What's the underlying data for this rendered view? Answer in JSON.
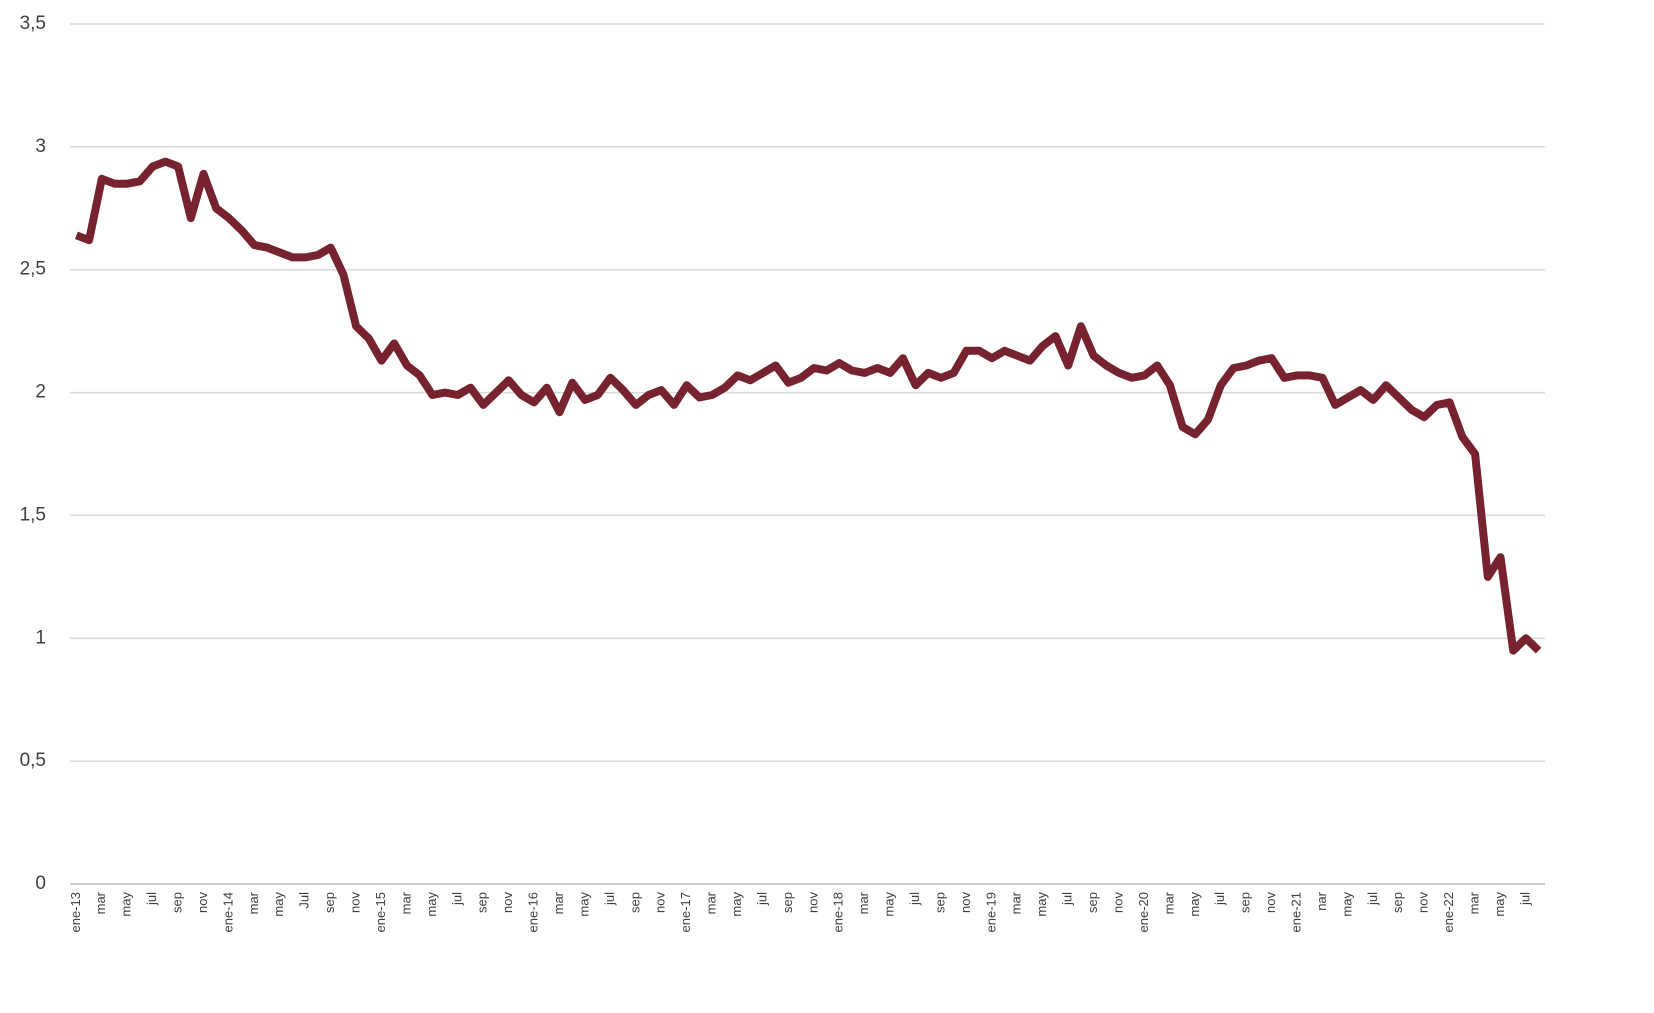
{
  "chart_data": {
    "type": "line",
    "categories": [
      "ene-13",
      null,
      "mar",
      null,
      "may",
      null,
      "jul",
      null,
      "sep",
      null,
      "nov",
      null,
      "ene-14",
      null,
      "mar",
      null,
      "may",
      null,
      "Jul",
      null,
      "sep",
      null,
      "nov",
      null,
      "ene-15",
      null,
      "mar",
      null,
      "may",
      null,
      "jul",
      null,
      "sep",
      null,
      "nov",
      null,
      "ene-16",
      null,
      "mar",
      null,
      "may",
      null,
      "jul",
      null,
      "sep",
      null,
      "nov",
      null,
      "ene-17",
      null,
      "mar",
      null,
      "may",
      null,
      "jul",
      null,
      "sep",
      null,
      "nov",
      null,
      "ene-18",
      null,
      "mar",
      null,
      "may",
      null,
      "jul",
      null,
      "sep",
      null,
      "nov",
      null,
      "ene-19",
      null,
      "mar",
      null,
      "may",
      null,
      "jul",
      null,
      "sep",
      null,
      "nov",
      null,
      "ene-20",
      null,
      "mar",
      null,
      "may",
      null,
      "jul",
      null,
      "sep",
      null,
      "nov",
      null,
      "ene-21",
      null,
      "nar",
      null,
      "may",
      null,
      "jul",
      null,
      "sep",
      null,
      "nov",
      null,
      "ene-22",
      null,
      "mar",
      null,
      "may",
      null,
      "jul",
      null
    ],
    "values": [
      2.64,
      2.62,
      2.87,
      2.85,
      2.85,
      2.86,
      2.92,
      2.94,
      2.92,
      2.71,
      2.89,
      2.75,
      2.71,
      2.66,
      2.6,
      2.59,
      2.57,
      2.55,
      2.55,
      2.56,
      2.59,
      2.48,
      2.27,
      2.22,
      2.13,
      2.2,
      2.11,
      2.07,
      1.99,
      2.0,
      1.99,
      2.02,
      1.95,
      2.0,
      2.05,
      1.99,
      1.96,
      2.02,
      1.92,
      2.04,
      1.97,
      1.99,
      2.06,
      2.01,
      1.95,
      1.99,
      2.01,
      1.95,
      2.03,
      1.98,
      1.99,
      2.02,
      2.07,
      2.05,
      2.08,
      2.11,
      2.04,
      2.06,
      2.1,
      2.09,
      2.12,
      2.09,
      2.08,
      2.1,
      2.08,
      2.14,
      2.03,
      2.08,
      2.06,
      2.08,
      2.17,
      2.17,
      2.14,
      2.17,
      2.15,
      2.13,
      2.19,
      2.23,
      2.11,
      2.27,
      2.15,
      2.11,
      2.08,
      2.06,
      2.07,
      2.11,
      2.03,
      1.86,
      1.83,
      1.89,
      2.03,
      2.1,
      2.11,
      2.13,
      2.14,
      2.06,
      2.07,
      2.07,
      2.06,
      1.95,
      1.98,
      2.01,
      1.97,
      2.03,
      1.98,
      1.93,
      1.9,
      1.95,
      1.96,
      1.82,
      1.75,
      1.25,
      1.33,
      0.95,
      1.0,
      0.95
    ],
    "color": "#76232f",
    "ylim": [
      0,
      3.5
    ],
    "yticks": [
      0,
      {
        "value": 0.5,
        "label": "0,5"
      },
      1,
      {
        "value": 1.5,
        "label": "1,5"
      },
      2,
      {
        "value": 2.5,
        "label": "2,5"
      },
      3,
      {
        "value": 3.5,
        "label": "3,5"
      }
    ],
    "grid": true
  }
}
